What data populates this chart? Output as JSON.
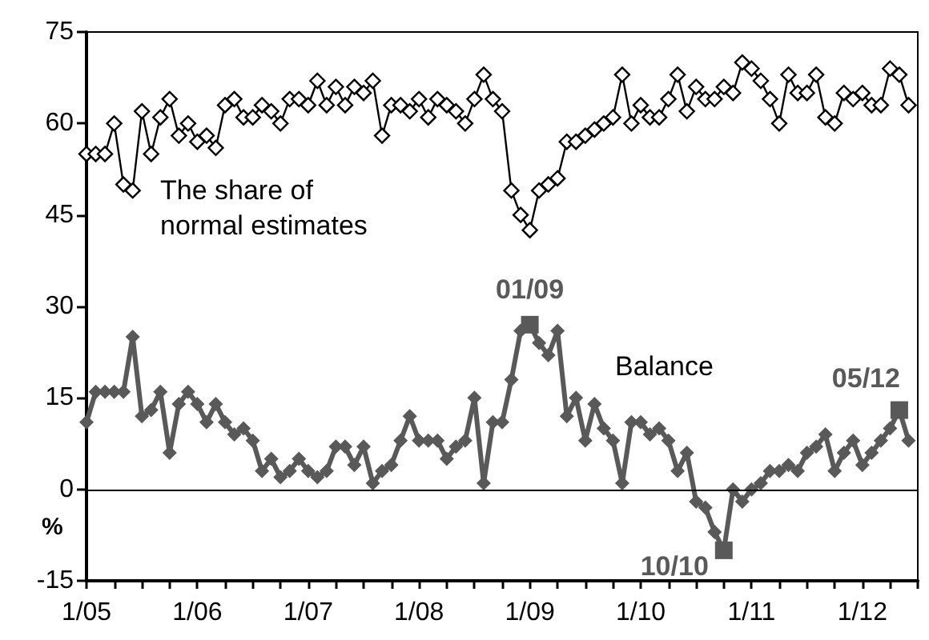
{
  "chart_data": {
    "type": "line",
    "ylabel": "%",
    "x": [
      "2005-01",
      "2005-02",
      "2005-03",
      "2005-04",
      "2005-05",
      "2005-06",
      "2005-07",
      "2005-08",
      "2005-09",
      "2005-10",
      "2005-11",
      "2005-12",
      "2006-01",
      "2006-02",
      "2006-03",
      "2006-04",
      "2006-05",
      "2006-06",
      "2006-07",
      "2006-08",
      "2006-09",
      "2006-10",
      "2006-11",
      "2006-12",
      "2007-01",
      "2007-02",
      "2007-03",
      "2007-04",
      "2007-05",
      "2007-06",
      "2007-07",
      "2007-08",
      "2007-09",
      "2007-10",
      "2007-11",
      "2007-12",
      "2008-01",
      "2008-02",
      "2008-03",
      "2008-04",
      "2008-05",
      "2008-06",
      "2008-07",
      "2008-08",
      "2008-09",
      "2008-10",
      "2008-11",
      "2008-12",
      "2009-01",
      "2009-02",
      "2009-03",
      "2009-04",
      "2009-05",
      "2009-06",
      "2009-07",
      "2009-08",
      "2009-09",
      "2009-10",
      "2009-11",
      "2009-12",
      "2010-01",
      "2010-02",
      "2010-03",
      "2010-04",
      "2010-05",
      "2010-06",
      "2010-07",
      "2010-08",
      "2010-09",
      "2010-10",
      "2010-11",
      "2010-12",
      "2011-01",
      "2011-02",
      "2011-03",
      "2011-04",
      "2011-05",
      "2011-06",
      "2011-07",
      "2011-08",
      "2011-09",
      "2011-10",
      "2011-11",
      "2011-12",
      "2012-01",
      "2012-02",
      "2012-03",
      "2012-04",
      "2012-05",
      "2012-06"
    ],
    "series": [
      {
        "name": "The share of normal estimates",
        "color": "#000000",
        "marker": "diamond",
        "values": [
          55,
          55,
          55,
          60,
          50,
          49,
          62,
          55,
          61,
          64,
          58,
          60,
          57,
          58,
          56,
          63,
          64,
          61,
          61,
          63,
          62,
          60,
          64,
          64,
          63,
          67,
          63,
          66,
          63,
          66,
          65,
          67,
          58,
          63,
          63,
          62,
          64,
          61,
          64,
          63,
          62,
          60,
          64,
          68,
          64,
          62,
          49,
          45,
          42.5,
          49,
          50,
          51,
          57,
          57,
          58,
          59,
          60,
          61,
          68,
          60,
          63,
          61,
          61,
          64,
          68,
          62,
          66,
          64,
          64,
          66,
          65,
          70,
          69,
          67,
          64,
          60,
          68,
          65,
          65,
          68,
          61,
          60,
          65,
          64,
          65,
          63,
          63,
          69,
          68,
          63
        ]
      },
      {
        "name": "Balance",
        "color": "#595959",
        "marker": "diamond",
        "values": [
          11,
          16,
          16,
          16,
          16,
          25,
          12,
          13,
          16,
          6,
          14,
          16,
          14,
          11,
          14,
          11,
          9,
          10,
          8,
          3,
          5,
          2,
          3,
          5,
          3,
          2,
          3,
          7,
          7,
          4,
          7,
          1,
          3,
          4,
          8,
          12,
          8,
          8,
          8,
          5,
          7,
          8,
          15,
          1,
          11,
          11,
          18,
          26,
          27,
          24,
          22,
          26,
          12,
          15,
          8,
          14,
          10,
          8,
          1,
          11,
          11,
          9,
          10,
          8,
          3,
          6,
          -2,
          -3,
          -7,
          -10,
          0,
          -2,
          0,
          1,
          3,
          3,
          4,
          3,
          6,
          7,
          9,
          3,
          6,
          8,
          4,
          6,
          8,
          10,
          13,
          8
        ]
      }
    ],
    "annotations": [
      {
        "text": "01/09",
        "x": "2009-01",
        "y": 27
      },
      {
        "text": "10/10",
        "x": "2010-10",
        "y": -10
      },
      {
        "text": "05/12",
        "x": "2012-05",
        "y": 13
      }
    ],
    "xlim": [
      "2005-01",
      "2012-07"
    ],
    "xticks": [
      {
        "value": "2005-01",
        "label": "1/05"
      },
      {
        "value": "2005-04",
        "label": null
      },
      {
        "value": "2005-07",
        "label": null
      },
      {
        "value": "2005-10",
        "label": null
      },
      {
        "value": "2006-01",
        "label": "1/06"
      },
      {
        "value": "2006-04",
        "label": null
      },
      {
        "value": "2006-07",
        "label": null
      },
      {
        "value": "2006-10",
        "label": null
      },
      {
        "value": "2007-01",
        "label": "1/07"
      },
      {
        "value": "2007-04",
        "label": null
      },
      {
        "value": "2007-07",
        "label": null
      },
      {
        "value": "2007-10",
        "label": null
      },
      {
        "value": "2008-01",
        "label": "1/08"
      },
      {
        "value": "2008-04",
        "label": null
      },
      {
        "value": "2008-07",
        "label": null
      },
      {
        "value": "2008-10",
        "label": null
      },
      {
        "value": "2009-01",
        "label": "1/09"
      },
      {
        "value": "2009-04",
        "label": null
      },
      {
        "value": "2009-07",
        "label": null
      },
      {
        "value": "2009-10",
        "label": null
      },
      {
        "value": "2010-01",
        "label": "1/10"
      },
      {
        "value": "2010-04",
        "label": null
      },
      {
        "value": "2010-07",
        "label": null
      },
      {
        "value": "2010-10",
        "label": null
      },
      {
        "value": "2011-01",
        "label": "1/11"
      },
      {
        "value": "2011-04",
        "label": null
      },
      {
        "value": "2011-07",
        "label": null
      },
      {
        "value": "2011-10",
        "label": null
      },
      {
        "value": "2012-01",
        "label": "1/12"
      },
      {
        "value": "2012-04",
        "label": null
      },
      {
        "value": "2012-07",
        "label": null
      }
    ],
    "ylim": [
      -15,
      75
    ],
    "yticks": [
      -15,
      0,
      15,
      30,
      45,
      60,
      75
    ],
    "ref_lines": [
      {
        "axis": "y",
        "value": 0,
        "color": "#000000"
      }
    ],
    "grid": false,
    "legend": false
  }
}
